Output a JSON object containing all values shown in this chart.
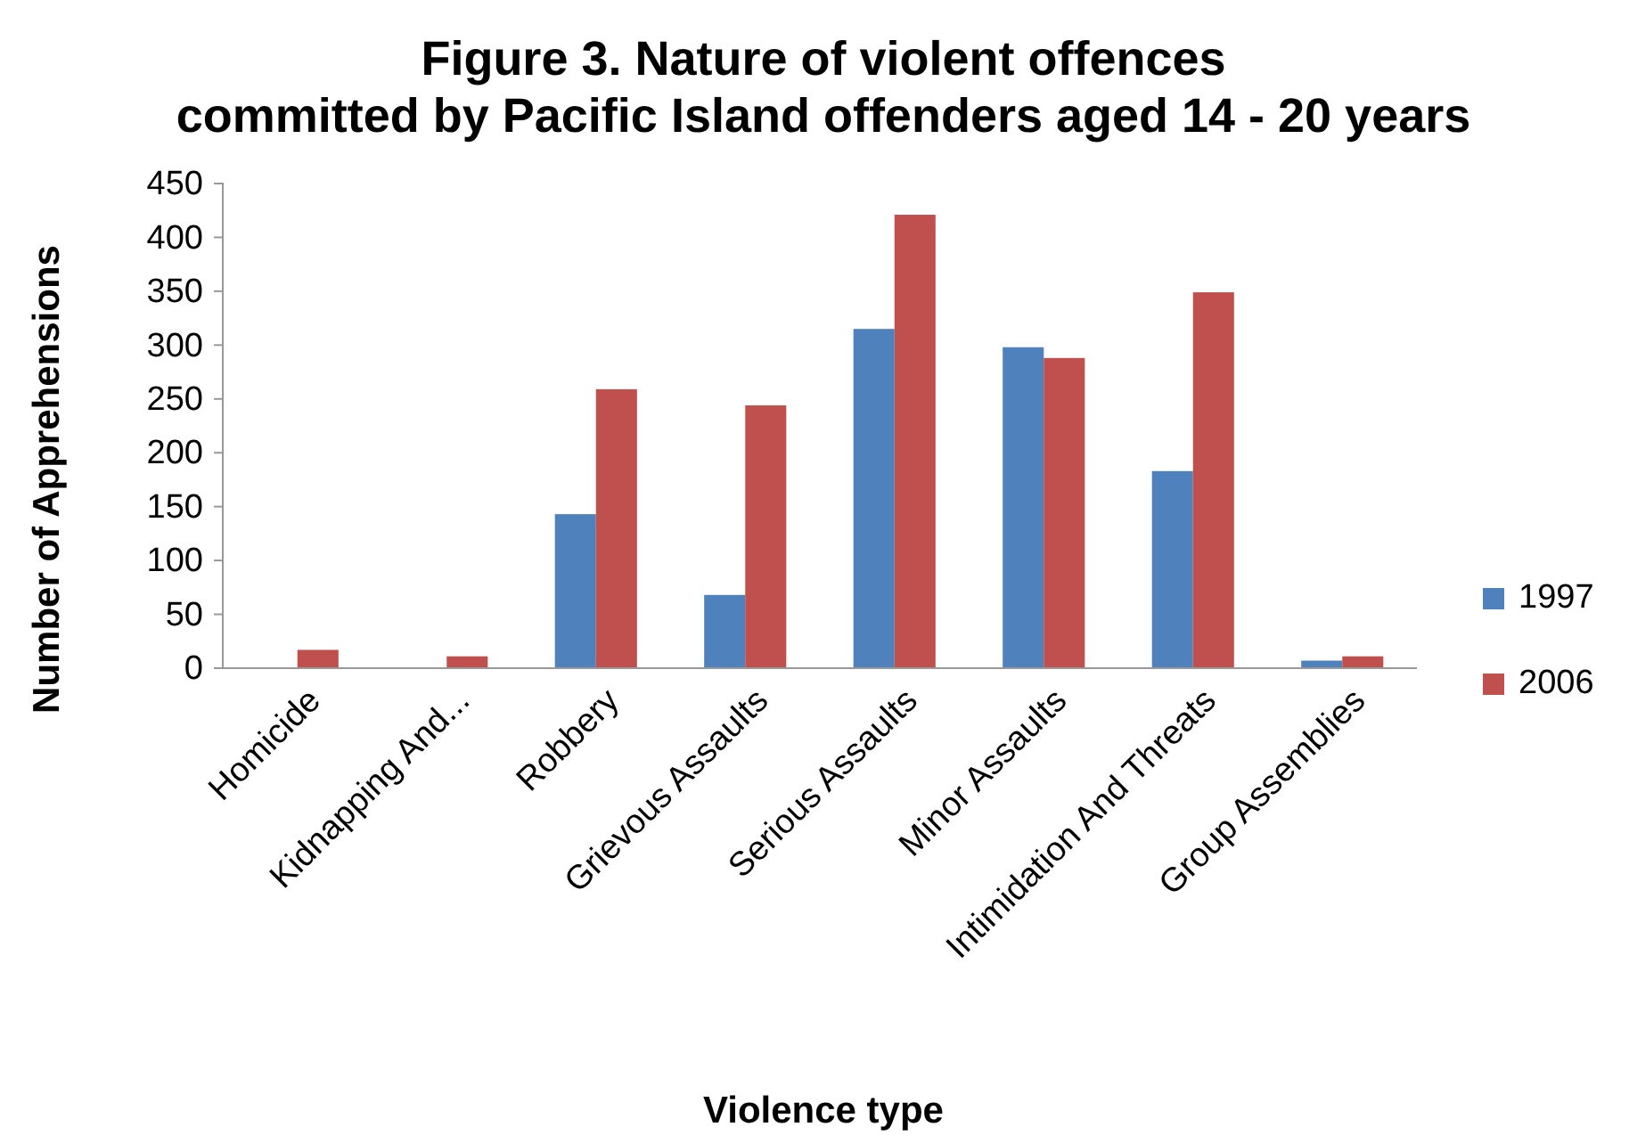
{
  "chart_data": {
    "type": "bar",
    "title": "Figure 3.  Nature of violent offences committed by  Pacific Island offenders aged 14 - 20 years",
    "xlabel": "Violence type",
    "ylabel": "Number of Apprehensions",
    "categories": [
      "Homicide",
      "Kidnapping And...",
      "Robbery",
      "Grievous Assaults",
      "Serious Assaults",
      "Minor Assaults",
      "Intimidation And Threats",
      "Group Assemblies"
    ],
    "series": [
      {
        "name": "1997",
        "color": "#4f81bd",
        "values": [
          0,
          0,
          143,
          68,
          315,
          298,
          183,
          7
        ]
      },
      {
        "name": "2006",
        "color": "#c0504d",
        "values": [
          17,
          11,
          259,
          244,
          421,
          288,
          349,
          11
        ]
      }
    ],
    "ylim": [
      0,
      450
    ],
    "yticks": [
      0,
      50,
      100,
      150,
      200,
      250,
      300,
      350,
      400,
      450
    ],
    "grid": false,
    "legend": "right"
  }
}
